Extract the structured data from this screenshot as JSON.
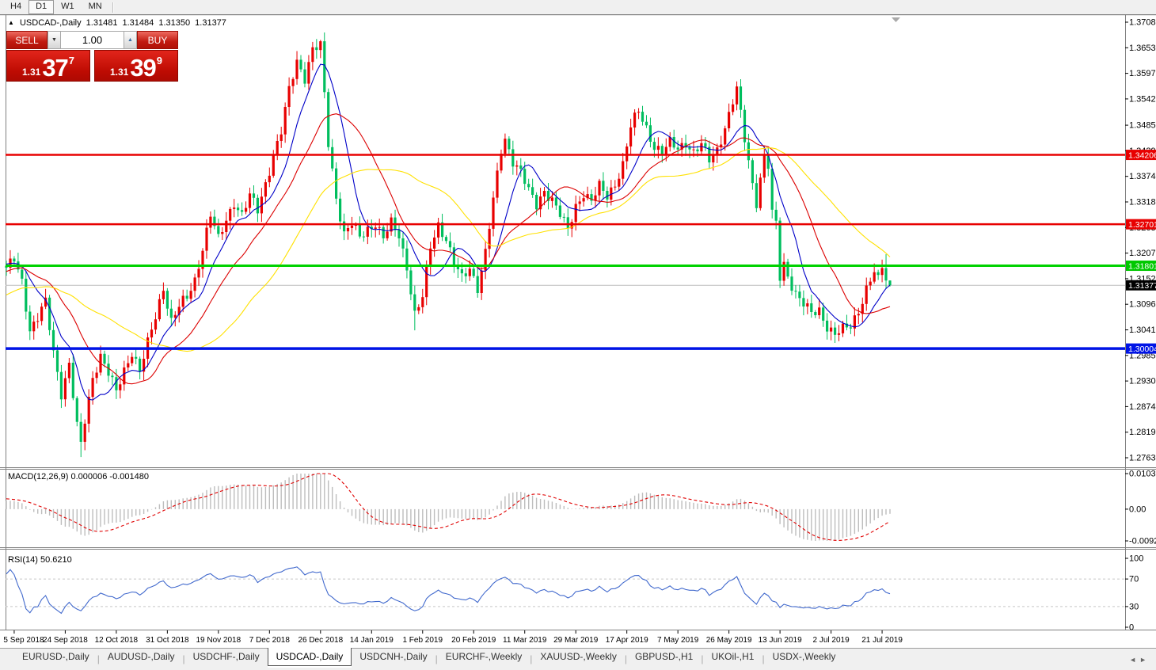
{
  "toolbar": {
    "timeframes": [
      {
        "label": "H4",
        "active": false
      },
      {
        "label": "D1",
        "active": true
      },
      {
        "label": "W1",
        "active": false
      },
      {
        "label": "MN",
        "active": false
      }
    ]
  },
  "chart_header": {
    "symbol_line": "USDCAD-,Daily",
    "open": "1.31481",
    "high": "1.31484",
    "low": "1.31350",
    "close": "1.31377"
  },
  "trade_panel": {
    "sell_label": "SELL",
    "buy_label": "BUY",
    "volume": "1.00",
    "sell_price": {
      "prefix": "1.31",
      "big": "37",
      "sup": "7"
    },
    "buy_price": {
      "prefix": "1.31",
      "big": "39",
      "sup": "9"
    }
  },
  "tabs": {
    "items": [
      "EURUSD-,Daily",
      "AUDUSD-,Daily",
      "USDCHF-,Daily",
      "USDCAD-,Daily",
      "USDCNH-,Daily",
      "EURCHF-,Weekly",
      "XAUUSD-,Weekly",
      "GBPUSD-,H1",
      "UKOil-,H1",
      "USDX-,Weekly"
    ],
    "active_index": 3
  },
  "chart_data": {
    "type": "candlestick",
    "symbol": "USDCAD-",
    "timeframe": "Daily",
    "n_candles": 226,
    "colors": {
      "bull": "#e80000",
      "bear": "#00be5e",
      "ma_fast": "#0000c8",
      "ma_mid": "#dc0000",
      "ma_slow": "#ffe100",
      "hline_red": "#e80000",
      "hline_green": "#00d200",
      "hline_blue": "#0014e6",
      "bid_line": "#bebebe",
      "macd_hist": "#bdbdbd",
      "macd_signal": "#e00000",
      "rsi": "#4169cd",
      "rsi_level": "#c8c8c8",
      "border": "#808080",
      "current_badge": "#000000",
      "badge_text": "#ffffff"
    },
    "y_ticks": [
      "1.37085",
      "1.36530",
      "1.35975",
      "1.35420",
      "1.34850",
      "1.34295",
      "1.33740",
      "1.33185",
      "1.32630",
      "1.32075",
      "1.31520",
      "1.30965",
      "1.30410",
      "1.29855",
      "1.29300",
      "1.28745",
      "1.28190",
      "1.27635"
    ],
    "y_top_price": 1.37085,
    "y_bottom_price": 1.27635,
    "hlines": [
      {
        "price": 1.34206,
        "label": "1.34206",
        "color_key": "hline_red",
        "width": 2.5,
        "badge": "#e80000"
      },
      {
        "price": 1.32701,
        "label": "1.32701",
        "color_key": "hline_red",
        "width": 2.5,
        "badge": "#e80000"
      },
      {
        "price": 1.31801,
        "label": "1.31801",
        "color_key": "hline_green",
        "width": 3,
        "badge": "#00c800"
      },
      {
        "price": 1.30004,
        "label": "1.30004",
        "color_key": "hline_blue",
        "width": 3.5,
        "badge": "#0014e6"
      }
    ],
    "current_price": {
      "value": 1.31377,
      "label": "1.31377"
    },
    "x_labels": [
      "5 Sep 2018",
      "24 Sep 2018",
      "12 Oct 2018",
      "31 Oct 2018",
      "19 Nov 2018",
      "7 Dec 2018",
      "26 Dec 2018",
      "14 Jan 2019",
      "1 Feb 2019",
      "20 Feb 2019",
      "11 Mar 2019",
      "29 Mar 2019",
      "17 Apr 2019",
      "7 May 2019",
      "26 May 2019",
      "13 Jun 2019",
      "2 Jul 2019",
      "21 Jul 2019"
    ],
    "x_label_indices": [
      2,
      15,
      28,
      41,
      54,
      67,
      80,
      93,
      106,
      119,
      132,
      145,
      158,
      171,
      184,
      197,
      210,
      223
    ],
    "moving_averages": [
      {
        "period": 9,
        "color_key": "ma_fast"
      },
      {
        "period": 20,
        "color_key": "ma_mid"
      },
      {
        "period": 42,
        "color_key": "ma_slow"
      }
    ],
    "warmup_anchors": [
      [
        -60,
        1.295
      ],
      [
        -40,
        1.302
      ],
      [
        -25,
        1.31
      ],
      [
        -12,
        1.3165
      ],
      [
        -6,
        1.319
      ],
      [
        -1,
        1.318
      ]
    ],
    "close_anchors": [
      [
        0,
        1.317
      ],
      [
        2,
        1.3195
      ],
      [
        4,
        1.315
      ],
      [
        6,
        1.304
      ],
      [
        8,
        1.3065
      ],
      [
        10,
        1.31
      ],
      [
        12,
        1.2995
      ],
      [
        14,
        1.2905
      ],
      [
        16,
        1.2965
      ],
      [
        18,
        1.283
      ],
      [
        19,
        1.279
      ],
      [
        20,
        1.2845
      ],
      [
        22,
        1.294
      ],
      [
        24,
        1.2985
      ],
      [
        26,
        1.2945
      ],
      [
        28,
        1.2905
      ],
      [
        30,
        1.2955
      ],
      [
        32,
        1.2995
      ],
      [
        34,
        1.295
      ],
      [
        36,
        1.301
      ],
      [
        38,
        1.307
      ],
      [
        40,
        1.3135
      ],
      [
        42,
        1.306
      ],
      [
        44,
        1.309
      ],
      [
        46,
        1.311
      ],
      [
        48,
        1.315
      ],
      [
        50,
        1.322
      ],
      [
        52,
        1.329
      ],
      [
        54,
        1.3235
      ],
      [
        56,
        1.328
      ],
      [
        58,
        1.332
      ],
      [
        60,
        1.329
      ],
      [
        62,
        1.333
      ],
      [
        64,
        1.33
      ],
      [
        66,
        1.336
      ],
      [
        68,
        1.342
      ],
      [
        70,
        1.347
      ],
      [
        72,
        1.356
      ],
      [
        74,
        1.3625
      ],
      [
        76,
        1.359
      ],
      [
        78,
        1.365
      ],
      [
        80,
        1.3655
      ],
      [
        81,
        1.355
      ],
      [
        82,
        1.3445
      ],
      [
        84,
        1.333
      ],
      [
        86,
        1.325
      ],
      [
        88,
        1.327
      ],
      [
        90,
        1.324
      ],
      [
        92,
        1.326
      ],
      [
        94,
        1.3275
      ],
      [
        96,
        1.324
      ],
      [
        98,
        1.327
      ],
      [
        100,
        1.3245
      ],
      [
        102,
        1.318
      ],
      [
        104,
        1.3075
      ],
      [
        106,
        1.311
      ],
      [
        108,
        1.322
      ],
      [
        110,
        1.327
      ],
      [
        112,
        1.324
      ],
      [
        114,
        1.3185
      ],
      [
        116,
        1.315
      ],
      [
        118,
        1.3175
      ],
      [
        120,
        1.3135
      ],
      [
        122,
        1.321
      ],
      [
        124,
        1.332
      ],
      [
        126,
        1.343
      ],
      [
        127,
        1.3455
      ],
      [
        129,
        1.341
      ],
      [
        131,
        1.3385
      ],
      [
        133,
        1.334
      ],
      [
        135,
        1.331
      ],
      [
        137,
        1.3345
      ],
      [
        139,
        1.3325
      ],
      [
        141,
        1.329
      ],
      [
        143,
        1.3255
      ],
      [
        145,
        1.331
      ],
      [
        147,
        1.334
      ],
      [
        149,
        1.332
      ],
      [
        151,
        1.335
      ],
      [
        153,
        1.333
      ],
      [
        155,
        1.336
      ],
      [
        157,
        1.34
      ],
      [
        159,
        1.348
      ],
      [
        161,
        1.3515
      ],
      [
        163,
        1.348
      ],
      [
        165,
        1.344
      ],
      [
        167,
        1.3425
      ],
      [
        169,
        1.3445
      ],
      [
        171,
        1.3435
      ],
      [
        173,
        1.345
      ],
      [
        175,
        1.3425
      ],
      [
        177,
        1.344
      ],
      [
        179,
        1.341
      ],
      [
        181,
        1.3435
      ],
      [
        183,
        1.348
      ],
      [
        185,
        1.3535
      ],
      [
        186,
        1.356
      ],
      [
        188,
        1.3455
      ],
      [
        190,
        1.336
      ],
      [
        191,
        1.332
      ],
      [
        192,
        1.337
      ],
      [
        193,
        1.3418
      ],
      [
        194,
        1.3395
      ],
      [
        195,
        1.329
      ],
      [
        196,
        1.327
      ],
      [
        197,
        1.3155
      ],
      [
        198,
        1.3185
      ],
      [
        199,
        1.316
      ],
      [
        201,
        1.312
      ],
      [
        203,
        1.3095
      ],
      [
        205,
        1.3075
      ],
      [
        207,
        1.3085
      ],
      [
        209,
        1.305
      ],
      [
        211,
        1.303
      ],
      [
        213,
        1.304
      ],
      [
        215,
        1.305
      ],
      [
        217,
        1.3085
      ],
      [
        219,
        1.313
      ],
      [
        221,
        1.3165
      ],
      [
        222,
        1.316
      ],
      [
        223,
        1.3175
      ],
      [
        224,
        1.3148
      ],
      [
        225,
        1.31377
      ]
    ],
    "wick_overrides": {
      "19": {
        "low": 1.2765
      },
      "80": {
        "high": 1.367
      },
      "104": {
        "low": 1.304
      },
      "127": {
        "high": 1.3467
      },
      "161": {
        "high": 1.3522
      },
      "186": {
        "high": 1.358
      },
      "224": {
        "high": 1.3205
      },
      "225": {
        "high": 1.31484,
        "low": 1.3135
      }
    },
    "indicators": {
      "macd": {
        "label": "MACD(12,26,9)",
        "value": "0.000006",
        "signal_value": "-0.001480",
        "fast": 12,
        "slow": 26,
        "signal": 9,
        "axis_top": 0.010311,
        "axis_bottom": -0.009203,
        "axis_labels": [
          "0.010311",
          "0.00",
          "-0.009203"
        ]
      },
      "rsi": {
        "label": "RSI(14)",
        "value": "50.6210",
        "period": 14,
        "levels": [
          70,
          30
        ],
        "axis_labels": [
          "100",
          "70",
          "30",
          "0"
        ]
      }
    },
    "shift_marker": true
  }
}
